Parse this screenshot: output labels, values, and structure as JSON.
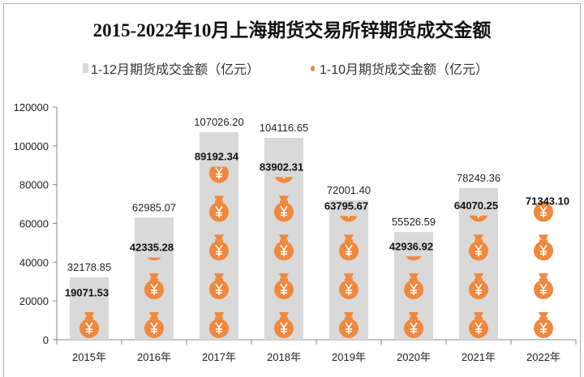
{
  "chart_data": {
    "type": "bar",
    "title": "2015-2022年10月上海期货交易所锌期货成交金额",
    "categories": [
      "2015年",
      "2016年",
      "2017年",
      "2018年",
      "2019年",
      "2020年",
      "2021年",
      "2022年"
    ],
    "series": [
      {
        "name": "1-12月期货成交金额（亿元）",
        "values": [
          32178.85,
          62985.07,
          107026.2,
          104116.65,
          72001.4,
          55526.59,
          78249.36,
          null
        ],
        "labels": [
          "32178.85",
          "62985.07",
          "107026.20",
          "104116.65",
          "72001.40",
          "55526.59",
          "78249.36",
          ""
        ],
        "color": "#d9d9d9"
      },
      {
        "name": "1-10月期货成交金额（亿元）",
        "values": [
          19071.53,
          42335.28,
          89192.34,
          83902.31,
          63795.67,
          42936.92,
          64070.25,
          71343.1
        ],
        "labels": [
          "19071.53",
          "42335.28",
          "89192.34",
          "83902.31",
          "63795.67",
          "42936.92",
          "64070.25",
          "71343.10"
        ],
        "color": "#f4a460",
        "icon": "money-bag-yuan-icon"
      }
    ],
    "ylim": [
      0,
      120000
    ],
    "yticks": [
      "0",
      "20000",
      "40000",
      "60000",
      "80000",
      "100000",
      "120000"
    ],
    "legend": "top",
    "grid": false
  }
}
